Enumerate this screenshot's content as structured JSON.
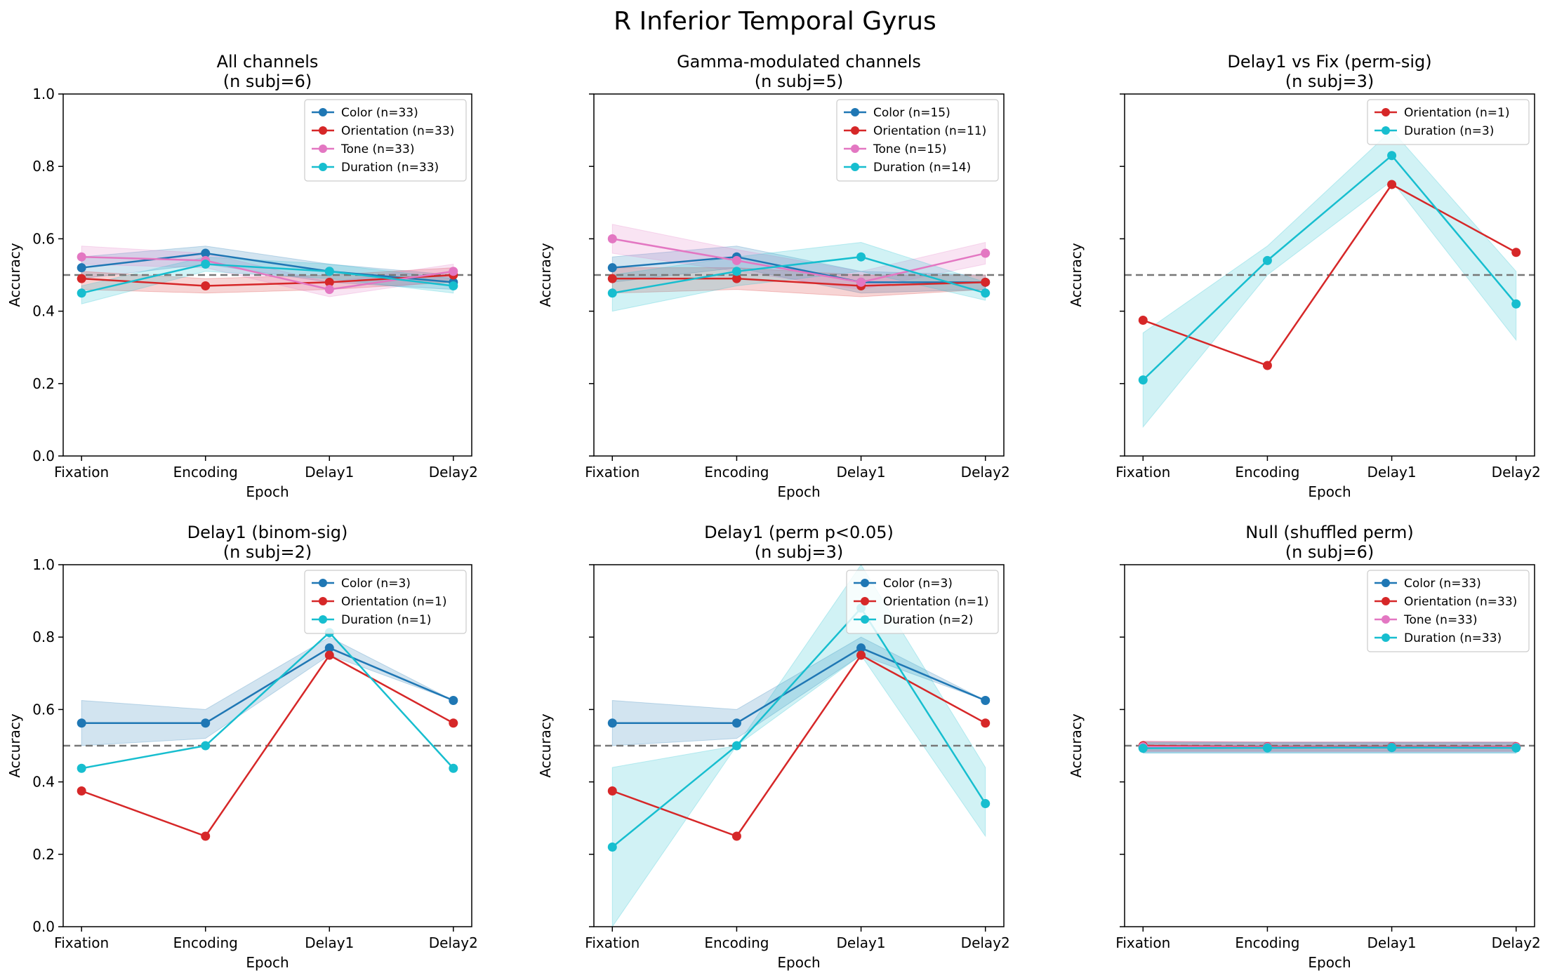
{
  "figure_title": "R Inferior Temporal Gyrus",
  "colors": {
    "Color": "#1f77b4",
    "Orientation": "#d62728",
    "Tone": "#e377c2",
    "Duration": "#17becf",
    "chance_line": "#777777"
  },
  "chart_data": [
    {
      "type": "line",
      "title": "All channels",
      "subtitle": "(n subj=6)",
      "xlabel": "Epoch",
      "ylabel": "Accuracy",
      "categories": [
        "Fixation",
        "Encoding",
        "Delay1",
        "Delay2"
      ],
      "ylim": [
        0,
        1
      ],
      "yticks": [
        "0.0",
        "0.2",
        "0.4",
        "0.6",
        "0.8",
        "1.0"
      ],
      "chance": 0.5,
      "legend_position": "top-right",
      "series": [
        {
          "name": "Color (n=33)",
          "key": "Color",
          "values": [
            0.52,
            0.56,
            0.51,
            0.48
          ],
          "lower": [
            0.49,
            0.53,
            0.48,
            0.46
          ],
          "upper": [
            0.55,
            0.58,
            0.53,
            0.5
          ]
        },
        {
          "name": "Orientation (n=33)",
          "key": "Orientation",
          "values": [
            0.49,
            0.47,
            0.48,
            0.5
          ],
          "lower": [
            0.46,
            0.45,
            0.46,
            0.48
          ],
          "upper": [
            0.51,
            0.49,
            0.5,
            0.52
          ]
        },
        {
          "name": "Tone (n=33)",
          "key": "Tone",
          "values": [
            0.55,
            0.54,
            0.46,
            0.51
          ],
          "lower": [
            0.53,
            0.52,
            0.44,
            0.49
          ],
          "upper": [
            0.58,
            0.56,
            0.48,
            0.53
          ]
        },
        {
          "name": "Duration (n=33)",
          "key": "Duration",
          "values": [
            0.45,
            0.53,
            0.51,
            0.47
          ],
          "lower": [
            0.42,
            0.51,
            0.49,
            0.45
          ],
          "upper": [
            0.47,
            0.55,
            0.53,
            0.49
          ]
        }
      ]
    },
    {
      "type": "line",
      "title": "Gamma-modulated channels",
      "subtitle": "(n subj=5)",
      "xlabel": "Epoch",
      "ylabel": "Accuracy",
      "categories": [
        "Fixation",
        "Encoding",
        "Delay1",
        "Delay2"
      ],
      "ylim": [
        0,
        1
      ],
      "yticks": [
        "",
        "",
        "",
        "",
        "",
        ""
      ],
      "chance": 0.5,
      "legend_position": "top-right",
      "series": [
        {
          "name": "Color (n=15)",
          "key": "Color",
          "values": [
            0.52,
            0.55,
            0.48,
            0.48
          ],
          "lower": [
            0.48,
            0.52,
            0.45,
            0.46
          ],
          "upper": [
            0.55,
            0.58,
            0.51,
            0.5
          ]
        },
        {
          "name": "Orientation (n=11)",
          "key": "Orientation",
          "values": [
            0.49,
            0.49,
            0.47,
            0.48
          ],
          "lower": [
            0.45,
            0.46,
            0.44,
            0.46
          ],
          "upper": [
            0.52,
            0.52,
            0.5,
            0.5
          ]
        },
        {
          "name": "Tone (n=15)",
          "key": "Tone",
          "values": [
            0.6,
            0.54,
            0.48,
            0.56
          ],
          "lower": [
            0.56,
            0.51,
            0.46,
            0.53
          ],
          "upper": [
            0.64,
            0.57,
            0.51,
            0.59
          ]
        },
        {
          "name": "Duration (n=14)",
          "key": "Duration",
          "values": [
            0.45,
            0.51,
            0.55,
            0.45
          ],
          "lower": [
            0.4,
            0.47,
            0.51,
            0.43
          ],
          "upper": [
            0.5,
            0.55,
            0.59,
            0.48
          ]
        }
      ]
    },
    {
      "type": "line",
      "title": "Delay1 vs Fix (perm-sig)",
      "subtitle": "(n subj=3)",
      "xlabel": "Epoch",
      "ylabel": "Accuracy",
      "categories": [
        "Fixation",
        "Encoding",
        "Delay1",
        "Delay2"
      ],
      "ylim": [
        0,
        1
      ],
      "yticks": [
        "",
        "",
        "",
        "",
        "",
        ""
      ],
      "chance": 0.5,
      "legend_position": "top-right",
      "series": [
        {
          "name": "Orientation (n=1)",
          "key": "Orientation",
          "values": [
            0.375,
            0.25,
            0.75,
            0.5625
          ]
        },
        {
          "name": "Duration (n=3)",
          "key": "Duration",
          "values": [
            0.21,
            0.54,
            0.83,
            0.42
          ],
          "lower": [
            0.08,
            0.5,
            0.76,
            0.32
          ],
          "upper": [
            0.34,
            0.58,
            0.9,
            0.51
          ]
        }
      ]
    },
    {
      "type": "line",
      "title": "Delay1 (binom-sig)",
      "subtitle": "(n subj=2)",
      "xlabel": "Epoch",
      "ylabel": "Accuracy",
      "categories": [
        "Fixation",
        "Encoding",
        "Delay1",
        "Delay2"
      ],
      "ylim": [
        0,
        1
      ],
      "yticks": [
        "0.0",
        "0.2",
        "0.4",
        "0.6",
        "0.8",
        "1.0"
      ],
      "chance": 0.5,
      "legend_position": "top-right",
      "series": [
        {
          "name": "Color (n=3)",
          "key": "Color",
          "values": [
            0.5625,
            0.5625,
            0.77,
            0.625
          ],
          "lower": [
            0.5,
            0.52,
            0.75,
            0.625
          ],
          "upper": [
            0.625,
            0.6,
            0.8,
            0.625
          ]
        },
        {
          "name": "Orientation (n=1)",
          "key": "Orientation",
          "values": [
            0.375,
            0.25,
            0.75,
            0.5625
          ]
        },
        {
          "name": "Duration (n=1)",
          "key": "Duration",
          "values": [
            0.4375,
            0.5,
            0.8125,
            0.4375
          ]
        }
      ]
    },
    {
      "type": "line",
      "title": "Delay1 (perm p<0.05)",
      "subtitle": "(n subj=3)",
      "xlabel": "Epoch",
      "ylabel": "Accuracy",
      "categories": [
        "Fixation",
        "Encoding",
        "Delay1",
        "Delay2"
      ],
      "ylim": [
        0,
        1
      ],
      "yticks": [
        "",
        "",
        "",
        "",
        "",
        ""
      ],
      "chance": 0.5,
      "legend_position": "top-right",
      "series": [
        {
          "name": "Color (n=3)",
          "key": "Color",
          "values": [
            0.5625,
            0.5625,
            0.77,
            0.625
          ],
          "lower": [
            0.5,
            0.52,
            0.75,
            0.625
          ],
          "upper": [
            0.625,
            0.6,
            0.8,
            0.625
          ]
        },
        {
          "name": "Orientation (n=1)",
          "key": "Orientation",
          "values": [
            0.375,
            0.25,
            0.75,
            0.5625
          ]
        },
        {
          "name": "Duration (n=2)",
          "key": "Duration",
          "values": [
            0.22,
            0.5,
            0.88,
            0.34
          ],
          "lower": [
            0.0,
            0.5,
            0.75,
            0.25
          ],
          "upper": [
            0.44,
            0.5,
            1.0,
            0.44
          ]
        }
      ]
    },
    {
      "type": "line",
      "title": "Null (shuffled perm)",
      "subtitle": "(n subj=6)",
      "xlabel": "Epoch",
      "ylabel": "Accuracy",
      "categories": [
        "Fixation",
        "Encoding",
        "Delay1",
        "Delay2"
      ],
      "ylim": [
        0,
        1
      ],
      "yticks": [
        "",
        "",
        "",
        "",
        "",
        ""
      ],
      "chance": 0.5,
      "legend_position": "top-right",
      "series": [
        {
          "name": "Color (n=33)",
          "key": "Color",
          "values": [
            0.495,
            0.495,
            0.495,
            0.495
          ],
          "lower": [
            0.48,
            0.48,
            0.48,
            0.48
          ],
          "upper": [
            0.51,
            0.51,
            0.51,
            0.51
          ]
        },
        {
          "name": "Orientation (n=33)",
          "key": "Orientation",
          "values": [
            0.5,
            0.497,
            0.497,
            0.497
          ],
          "lower": [
            0.485,
            0.485,
            0.485,
            0.485
          ],
          "upper": [
            0.512,
            0.51,
            0.51,
            0.51
          ]
        },
        {
          "name": "Tone (n=33)",
          "key": "Tone",
          "values": [
            0.497,
            0.496,
            0.496,
            0.496
          ],
          "lower": [
            0.483,
            0.483,
            0.483,
            0.483
          ],
          "upper": [
            0.513,
            0.51,
            0.51,
            0.51
          ]
        },
        {
          "name": "Duration (n=33)",
          "key": "Duration",
          "values": [
            0.493,
            0.494,
            0.495,
            0.494
          ],
          "lower": [
            0.48,
            0.48,
            0.48,
            0.48
          ],
          "upper": [
            0.508,
            0.508,
            0.508,
            0.508
          ]
        }
      ]
    }
  ]
}
